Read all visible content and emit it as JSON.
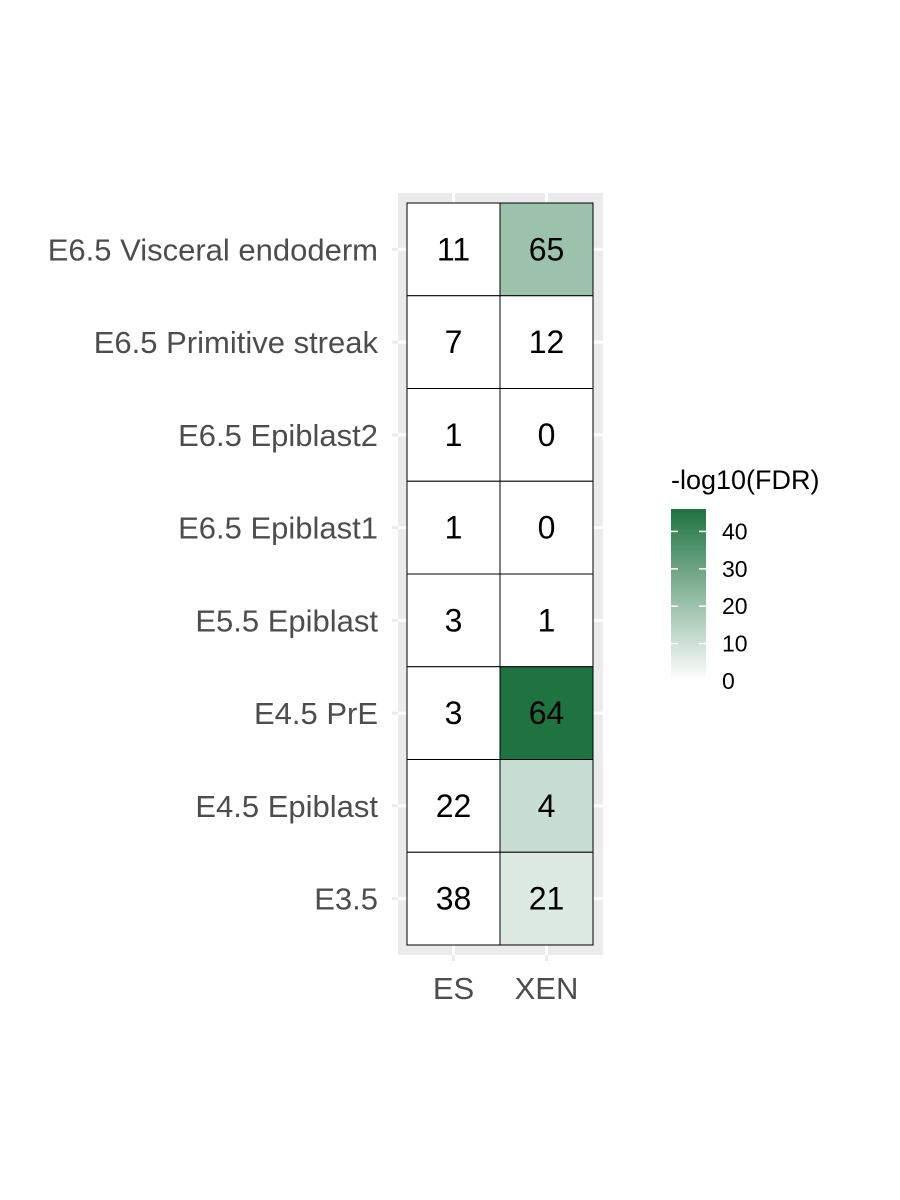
{
  "chart_data": {
    "type": "heatmap",
    "title": "",
    "xlabel": "",
    "ylabel": "",
    "x_categories": [
      "ES",
      "XEN"
    ],
    "y_categories": [
      "E6.5 Visceral endoderm",
      "E6.5 Primitive streak",
      "E6.5 Epiblast2",
      "E6.5 Epiblast1",
      "E5.5 Epiblast",
      "E4.5 PrE",
      "E4.5 Epiblast",
      "E3.5"
    ],
    "cell_labels": [
      [
        11,
        65
      ],
      [
        7,
        12
      ],
      [
        1,
        0
      ],
      [
        1,
        0
      ],
      [
        3,
        1
      ],
      [
        3,
        64
      ],
      [
        22,
        4
      ],
      [
        38,
        21
      ]
    ],
    "fill_values": [
      [
        0,
        20
      ],
      [
        0,
        0
      ],
      [
        0,
        0
      ],
      [
        0,
        0
      ],
      [
        0,
        0
      ],
      [
        0,
        46
      ],
      [
        0,
        11
      ],
      [
        0,
        7
      ]
    ],
    "legend": {
      "title": "-log10(FDR)",
      "ticks": [
        0,
        10,
        20,
        30,
        40
      ],
      "range": [
        0,
        46
      ],
      "position": "right"
    },
    "colors": {
      "low": "#ffffff",
      "high": "#1e7341",
      "panel_bg": "#ebebeb",
      "grid": "#ffffff",
      "cell_border": "#000000",
      "axis_text": "#4d4d4d"
    }
  }
}
